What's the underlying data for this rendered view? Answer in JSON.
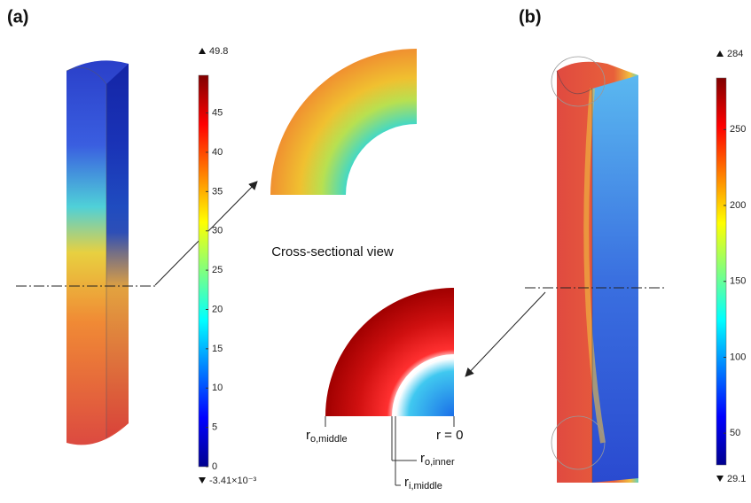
{
  "panels": [
    {
      "label": "(a)",
      "colorbar": {
        "max": 49.8,
        "min": {
          "value": -0.00341,
          "label": "-3.41×10⁻³"
        },
        "ticks": [
          45,
          40,
          35,
          30,
          25,
          20,
          15,
          10,
          5,
          0
        ]
      }
    },
    {
      "label": "(b)",
      "colorbar": {
        "max": 284,
        "min": 29.1,
        "ticks": [
          250,
          200,
          150,
          100,
          50
        ]
      }
    }
  ],
  "cross_section_title": "Cross-sectional view",
  "radius_labels": {
    "outer_middle": {
      "symbol": "r",
      "subscript": "o,middle"
    },
    "center": "r = 0",
    "outer_inner": {
      "symbol": "r",
      "subscript": "o,inner"
    },
    "inner_middle": {
      "symbol": "r",
      "subscript": "i,middle"
    }
  }
}
